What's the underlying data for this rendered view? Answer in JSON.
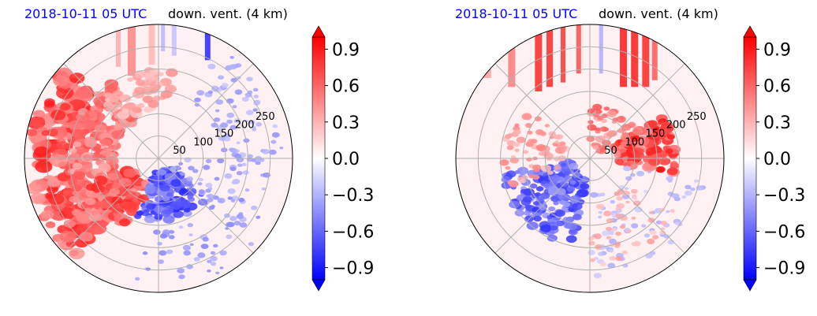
{
  "chart_data": [
    {
      "type": "heatmap",
      "projection": "polar",
      "title_left": "2018-10-11 05 UTC",
      "title_right": "down. vent. (4 km)",
      "title_left_color": "#0000ff",
      "radial_ticks": [
        "50",
        "100",
        "150",
        "200",
        "250"
      ],
      "radial_tick_values": [
        50,
        100,
        150,
        200,
        250
      ],
      "r_max": 300,
      "spokes_deg": [
        0,
        45,
        90,
        135,
        180,
        225,
        270,
        315
      ],
      "grid": true,
      "colormap": "bwr",
      "colorbar": {
        "vmin": -1.0,
        "vmax": 1.0,
        "ticks": [
          "0.9",
          "0.6",
          "0.3",
          "0.0",
          "−0.3",
          "−0.6",
          "−0.9"
        ],
        "tick_values": [
          0.9,
          0.6,
          0.3,
          0.0,
          -0.3,
          -0.6,
          -0.9
        ],
        "extend": "both"
      },
      "features": {
        "positive_region": "west and north-west sectors, arcs at 100-250 km, strongest near -0.9..0.9 red",
        "negative_region": "south-east quadrant near 50-150 km and north-north-east streaks"
      }
    },
    {
      "type": "heatmap",
      "projection": "polar",
      "title_left": "2018-10-11 05 UTC",
      "title_right": "down. vent. (4 km)",
      "title_left_color": "#0000ff",
      "radial_ticks": [
        "50",
        "100",
        "150",
        "200",
        "250"
      ],
      "radial_tick_values": [
        50,
        100,
        150,
        200,
        250
      ],
      "r_max": 300,
      "spokes_deg": [
        0,
        45,
        90,
        135,
        180,
        225,
        270,
        315
      ],
      "grid": true,
      "colormap": "bwr",
      "colorbar": {
        "vmin": -1.0,
        "vmax": 1.0,
        "ticks": [
          "0.9",
          "0.6",
          "0.3",
          "0.0",
          "−0.3",
          "−0.6",
          "−0.9"
        ],
        "tick_values": [
          0.9,
          0.6,
          0.3,
          0.0,
          -0.3,
          -0.6,
          -0.9
        ],
        "extend": "both"
      },
      "features": {
        "positive_region": "north vertical streaks and east sector near 50-150 km",
        "negative_region": "south-west quadrant near 50-200 km"
      }
    }
  ]
}
